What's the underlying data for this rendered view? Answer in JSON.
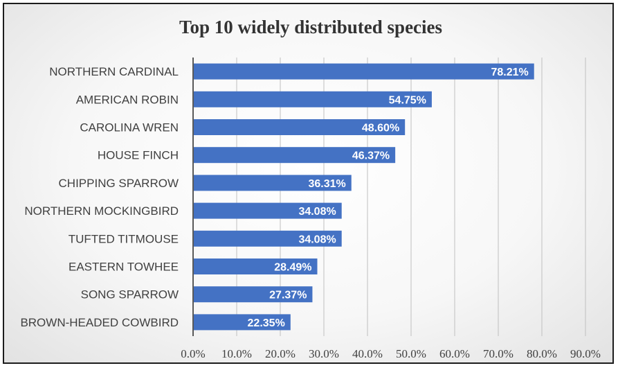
{
  "chart_data": {
    "type": "bar",
    "orientation": "horizontal",
    "title": "Top 10 widely distributed species",
    "categories": [
      "NORTHERN CARDINAL",
      "AMERICAN ROBIN",
      "CAROLINA WREN",
      "HOUSE FINCH",
      "CHIPPING SPARROW",
      "NORTHERN MOCKINGBIRD",
      "TUFTED TITMOUSE",
      "EASTERN TOWHEE",
      "SONG SPARROW",
      "BROWN-HEADED COWBIRD"
    ],
    "values": [
      78.21,
      54.75,
      48.6,
      46.37,
      36.31,
      34.08,
      34.08,
      28.49,
      27.37,
      22.35
    ],
    "data_labels": [
      "78.21%",
      "54.75%",
      "48.60%",
      "46.37%",
      "36.31%",
      "34.08%",
      "34.08%",
      "28.49%",
      "27.37%",
      "22.35%"
    ],
    "x_ticks": [
      "0.0%",
      "10.0%",
      "20.0%",
      "30.0%",
      "40.0%",
      "50.0%",
      "60.0%",
      "70.0%",
      "80.0%",
      "90.0%"
    ],
    "xlim": [
      0,
      90
    ],
    "xlabel": "",
    "ylabel": "",
    "grid": "vertical",
    "legend": "none",
    "colors": {
      "bar": "#4472C4",
      "grid": "#bfbfbf",
      "axis": "#595959"
    }
  }
}
